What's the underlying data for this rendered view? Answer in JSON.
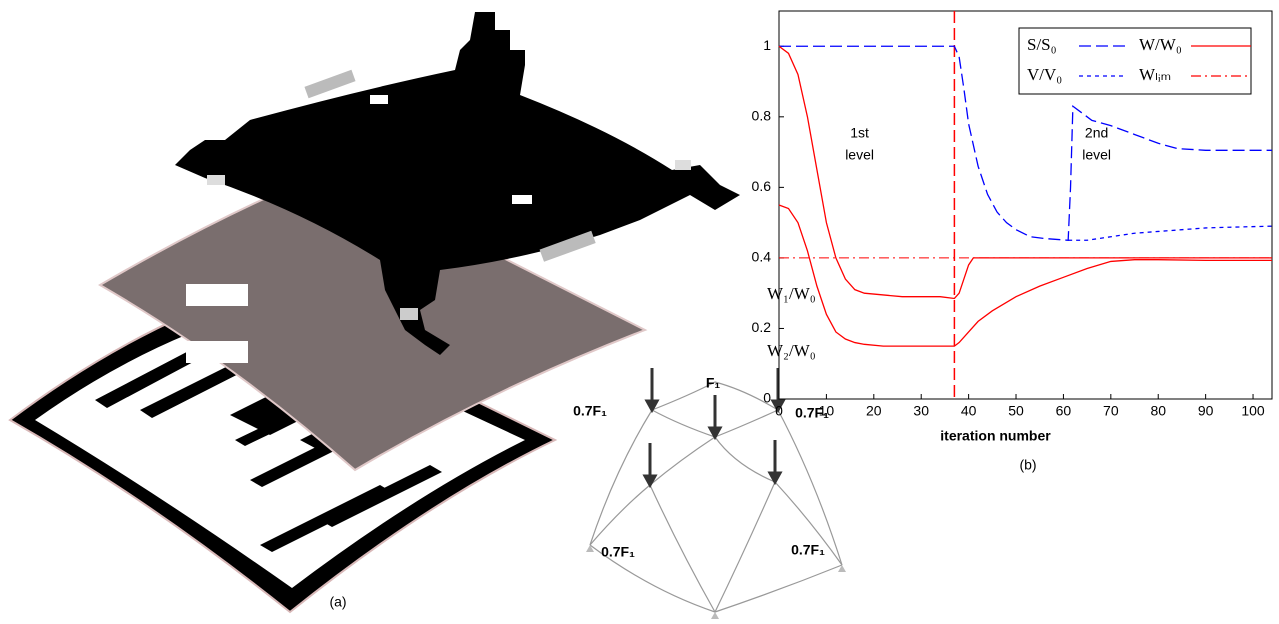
{
  "chart_data": {
    "type": "line",
    "xlabel": "iteration number",
    "caption": "(b)",
    "xlim": [
      0,
      104
    ],
    "ylim": [
      0,
      1.1
    ],
    "xticks": [
      0,
      10,
      20,
      30,
      40,
      50,
      60,
      70,
      80,
      90,
      100
    ],
    "yticks": [
      0,
      0.2,
      0.4,
      0.6,
      0.8,
      1
    ],
    "series": [
      {
        "name": "S/S₀",
        "color": "#0000ff",
        "dash": "dashed",
        "x": [
          0,
          37,
          38,
          39,
          40,
          42,
          44,
          46,
          48,
          50,
          53,
          56,
          61,
          61.5,
          62,
          64,
          66,
          70,
          75,
          80,
          84,
          90,
          104
        ],
        "values": [
          1,
          1,
          0.97,
          0.88,
          0.78,
          0.66,
          0.58,
          0.53,
          0.5,
          0.48,
          0.46,
          0.455,
          0.45,
          0.6,
          0.83,
          0.81,
          0.79,
          0.775,
          0.75,
          0.725,
          0.71,
          0.705,
          0.705
        ]
      },
      {
        "name": "V/V₀",
        "color": "#0000ff",
        "dash": "dotted",
        "x": [
          61,
          65,
          70,
          75,
          80,
          85,
          90,
          95,
          104
        ],
        "values": [
          0.45,
          0.45,
          0.46,
          0.47,
          0.475,
          0.48,
          0.485,
          0.487,
          0.49
        ]
      },
      {
        "name": "W₁/W₀",
        "color": "#ff0000",
        "dash": "solid",
        "x": [
          0,
          2,
          4,
          6,
          8,
          10,
          12,
          14,
          16,
          18,
          22,
          26,
          30,
          34,
          37,
          38,
          39,
          40,
          41,
          44,
          50,
          60,
          80,
          104
        ],
        "values": [
          1,
          0.98,
          0.92,
          0.8,
          0.65,
          0.5,
          0.4,
          0.34,
          0.31,
          0.3,
          0.295,
          0.29,
          0.29,
          0.29,
          0.285,
          0.3,
          0.34,
          0.38,
          0.4,
          0.4,
          0.4,
          0.4,
          0.4,
          0.4
        ]
      },
      {
        "name": "W₂/W₀",
        "color": "#ff0000",
        "dash": "solid",
        "x": [
          0,
          2,
          4,
          6,
          8,
          10,
          12,
          14,
          16,
          18,
          22,
          26,
          30,
          34,
          37,
          38,
          40,
          42,
          45,
          50,
          55,
          60,
          65,
          70,
          75,
          80,
          90,
          104
        ],
        "values": [
          0.55,
          0.54,
          0.5,
          0.42,
          0.32,
          0.24,
          0.19,
          0.17,
          0.16,
          0.155,
          0.15,
          0.15,
          0.15,
          0.15,
          0.15,
          0.16,
          0.19,
          0.22,
          0.25,
          0.29,
          0.32,
          0.345,
          0.37,
          0.39,
          0.395,
          0.395,
          0.393,
          0.393
        ]
      }
    ],
    "wlim": 0.4,
    "level_switch": 37,
    "legend": [
      {
        "label": "S/S₀",
        "color": "#0000ff",
        "dash": "dashed"
      },
      {
        "label": "W/W₀",
        "color": "#ff0000",
        "dash": "solid"
      },
      {
        "label": "V/V₀",
        "color": "#0000ff",
        "dash": "dotted"
      },
      {
        "label": "Wₗᵢₘ",
        "color": "#ff0000",
        "dash": "dashdot"
      }
    ],
    "annotations": [
      {
        "lines": [
          "1st",
          "level"
        ],
        "x": 17,
        "y": 0.72
      },
      {
        "lines": [
          "2nd",
          "level"
        ],
        "x": 67,
        "y": 0.72
      }
    ]
  },
  "figure_a": {
    "caption": "(a)",
    "loads": [
      "F₁",
      "0.7F₁",
      "0.7F₁",
      "0.7F₁",
      "0.7F₁"
    ]
  }
}
